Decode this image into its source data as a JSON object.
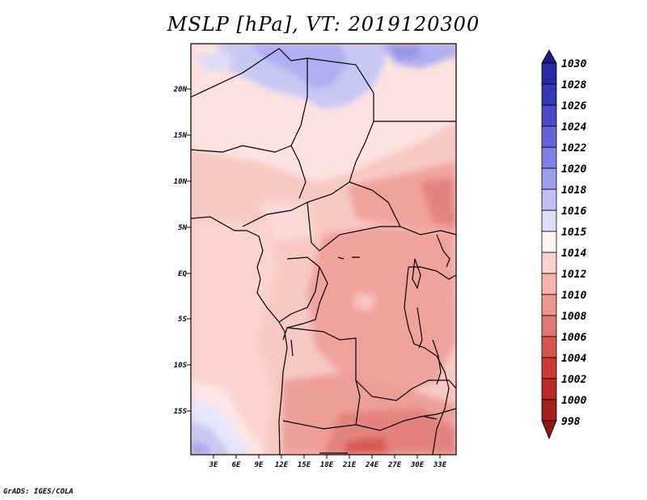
{
  "title": "MSLP [hPa], VT: 2019120300",
  "footer": "GrADS: IGES/COLA",
  "map": {
    "lat_labels": [
      "20N",
      "15N",
      "10N",
      "5N",
      "EQ",
      "5S",
      "10S",
      "15S"
    ],
    "lon_labels": [
      "3E",
      "6E",
      "9E",
      "12E",
      "15E",
      "18E",
      "21E",
      "24E",
      "27E",
      "30E",
      "33E"
    ]
  },
  "legend": {
    "levels": [
      "1030",
      "1028",
      "1026",
      "1024",
      "1022",
      "1020",
      "1018",
      "1016",
      "1015",
      "1014",
      "1012",
      "1010",
      "1008",
      "1006",
      "1004",
      "1002",
      "1000",
      "998"
    ],
    "colors": [
      "#1e1a8c",
      "#2a2aa0",
      "#3636b4",
      "#4a4ac8",
      "#6464d8",
      "#7f7fe4",
      "#9e9eee",
      "#c0c0f6",
      "#dedefa",
      "#fff4f2",
      "#fcd2d0",
      "#f7b3ae",
      "#ef958f",
      "#e07872",
      "#d8544f",
      "#cc3a35",
      "#bb2a26",
      "#a4201d",
      "#8c1814"
    ]
  }
}
